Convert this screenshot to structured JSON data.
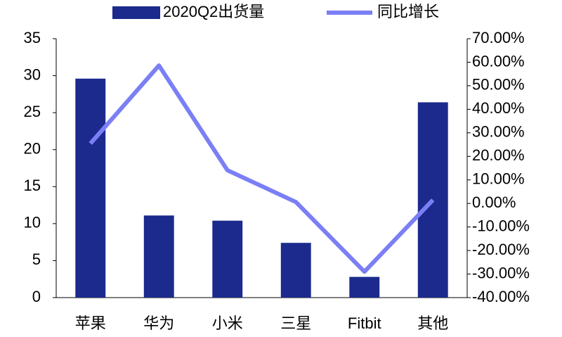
{
  "chart_data": {
    "type": "bar-line",
    "categories": [
      "苹果",
      "华为",
      "小米",
      "三星",
      "Fitbit",
      "其他"
    ],
    "series": [
      {
        "name": "2020Q2出货量",
        "type": "bar",
        "color": "#1b2a8c",
        "values": [
          29.6,
          11.1,
          10.4,
          7.4,
          2.8,
          26.4
        ]
      },
      {
        "name": "同比增长",
        "type": "line",
        "axis": "y2",
        "color": "#7b7ff5",
        "values": [
          25.5,
          58.6,
          14.1,
          0.6,
          -29,
          1.5
        ]
      }
    ],
    "ylim": [
      0,
      35
    ],
    "yticks": [
      0,
      5,
      10,
      15,
      20,
      25,
      30,
      35
    ],
    "y2lim": [
      -40,
      70
    ],
    "y2ticks": [
      {
        "value": -40,
        "label": "-40.00%"
      },
      {
        "value": -30,
        "label": "-30.00%"
      },
      {
        "value": -20,
        "label": "-20.00%"
      },
      {
        "value": -10,
        "label": "-10.00%"
      },
      {
        "value": 0,
        "label": "0.00%"
      },
      {
        "value": 10,
        "label": "10.00%"
      },
      {
        "value": 20,
        "label": "20.00%"
      },
      {
        "value": 30,
        "label": "30.00%"
      },
      {
        "value": 40,
        "label": "40.00%"
      },
      {
        "value": 50,
        "label": "50.00%"
      },
      {
        "value": 60,
        "label": "60.00%"
      },
      {
        "value": 70,
        "label": "70.00%"
      }
    ],
    "grid": false,
    "legend": "top"
  }
}
